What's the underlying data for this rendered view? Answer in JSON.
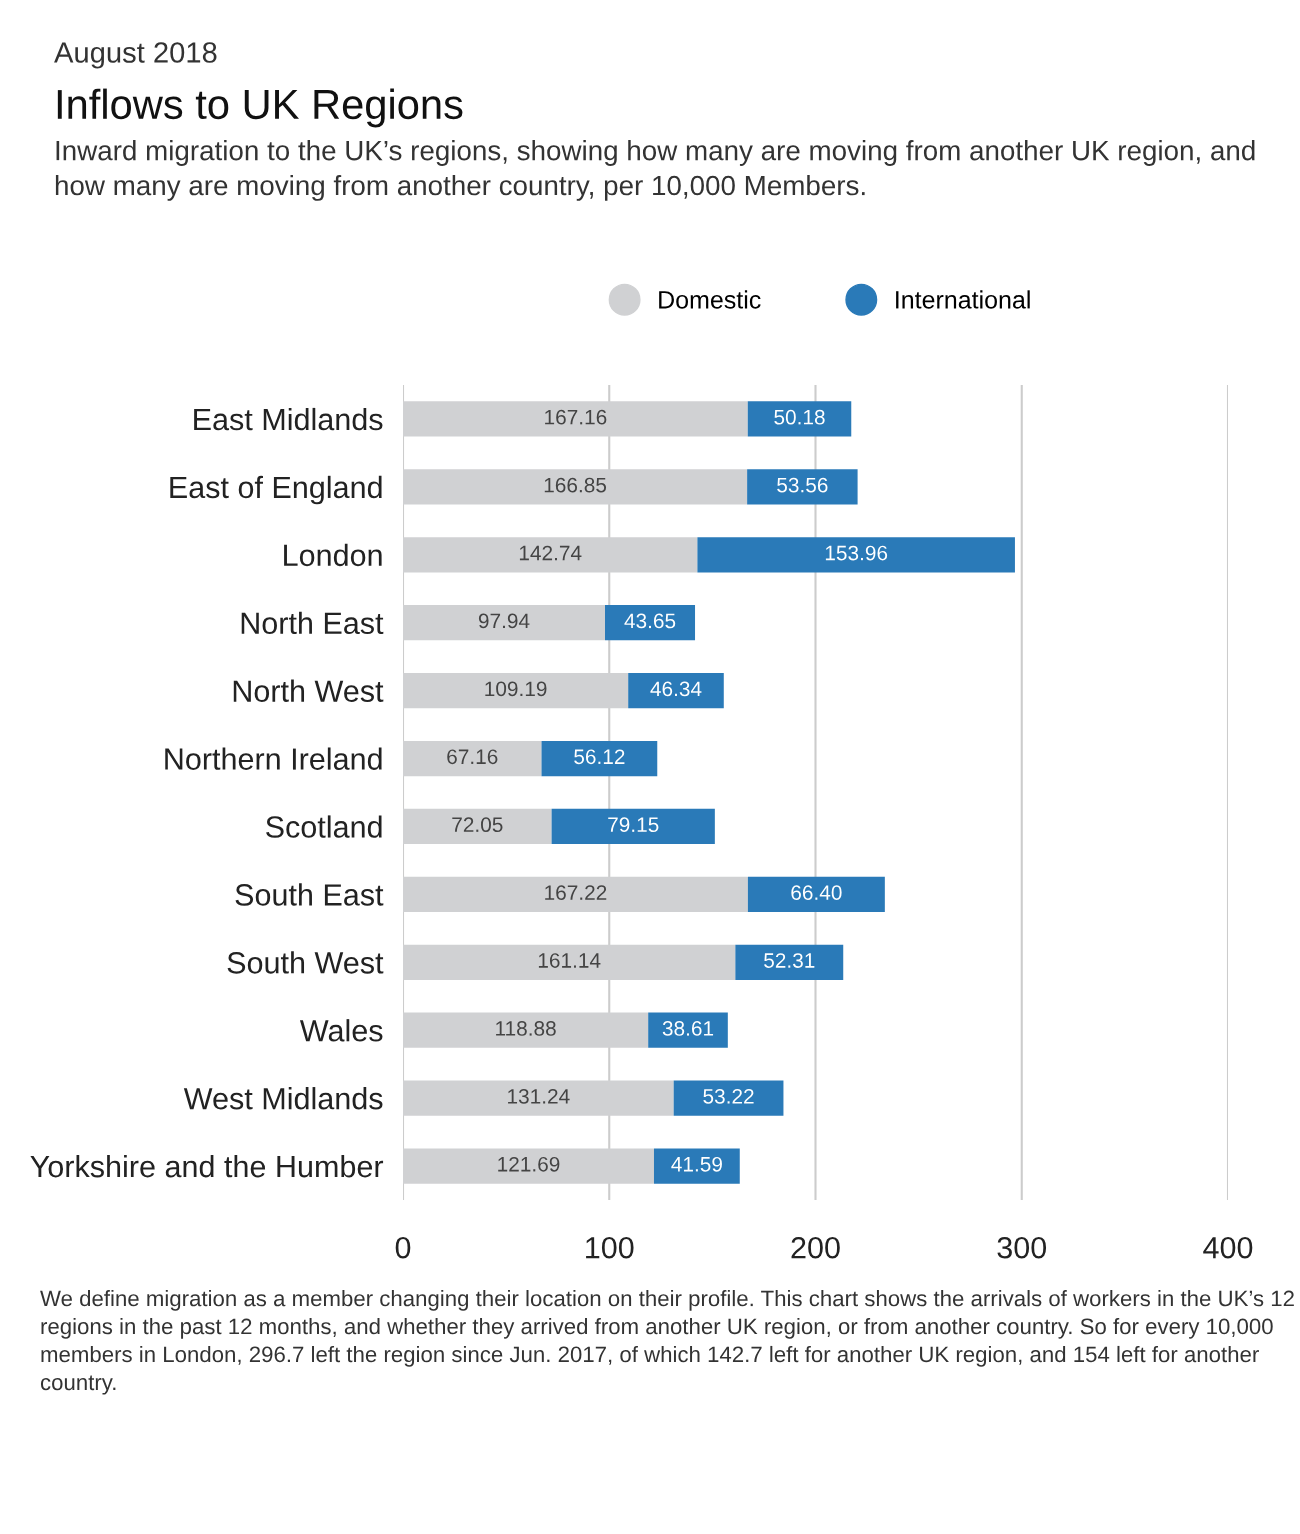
{
  "chart_data": {
    "type": "bar",
    "orientation": "horizontal",
    "stacked": true,
    "subtitle": "August 2018",
    "title": "Inflows to UK Regions",
    "annotations": [
      "Inward migration to the UK’s regions, showing how many are moving from another UK region, and how many are moving from another country, per 10,000 Members.",
      "We define migration as a member changing their location on their profile. This chart shows the arrivals of workers in the UK’s 12 regions in the past 12 months, and whether they arrived from another UK region, or from another country. So for every 10,000 members in London, 296.7 left the region since Jun. 2017, of which 142.7 left for another UK region, and 154 left for another country."
    ],
    "categories": [
      "East Midlands",
      "East of England",
      "London",
      "North East",
      "North West",
      "Northern Ireland",
      "Scotland",
      "South East",
      "South West",
      "Wales",
      "West Midlands",
      "Yorkshire and the Humber"
    ],
    "series": [
      {
        "name": "Domestic",
        "color": "#d0d1d3",
        "values": [
          167.16,
          166.85,
          142.74,
          97.94,
          109.19,
          67.16,
          72.05,
          167.22,
          161.14,
          118.88,
          131.24,
          121.69
        ],
        "value_labels": [
          "167.16",
          "166.85",
          "142.74",
          "97.94",
          "109.19",
          "67.16",
          "72.05",
          "167.22",
          "161.14",
          "118.88",
          "131.24",
          "121.69"
        ]
      },
      {
        "name": "International",
        "color": "#2a7ab8",
        "values": [
          50.18,
          53.56,
          153.96,
          43.65,
          46.34,
          56.12,
          79.15,
          66.4,
          52.31,
          38.61,
          53.22,
          41.59
        ],
        "value_labels": [
          "50.18",
          "53.56",
          "153.96",
          "43.65",
          "46.34",
          "56.12",
          "79.15",
          "66.40",
          "52.31",
          "38.61",
          "53.22",
          "41.59"
        ]
      }
    ],
    "xlim": [
      0,
      400
    ],
    "xticks": [
      0,
      100,
      200,
      300,
      400
    ],
    "grid": "x",
    "legend": "top",
    "marker": "circle"
  }
}
